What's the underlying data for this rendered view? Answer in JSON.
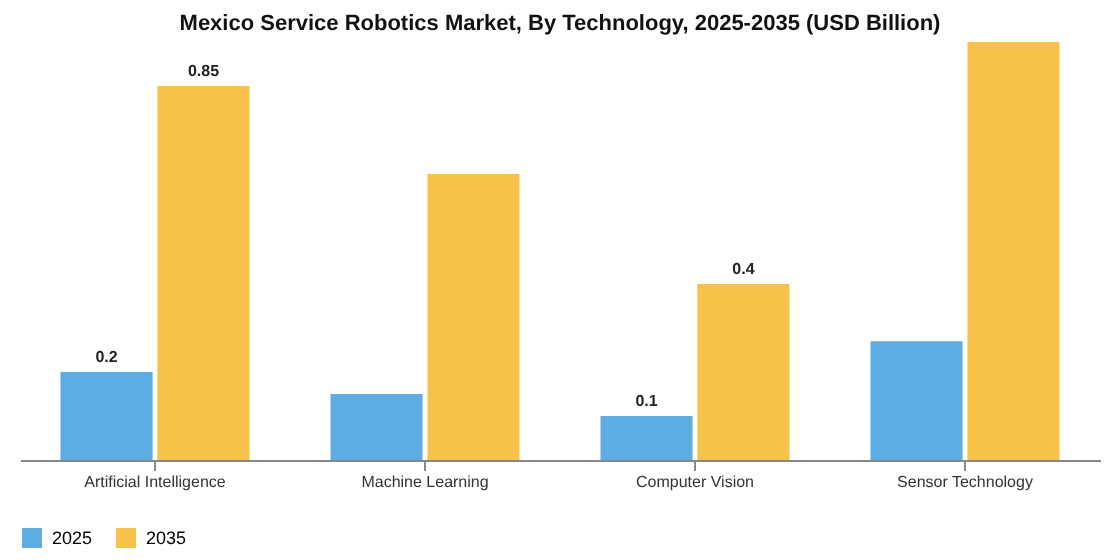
{
  "chart_data": {
    "type": "bar",
    "title": "Mexico Service Robotics Market, By Technology, 2025-2035 (USD Billion)",
    "categories": [
      "Artificial Intelligence",
      "Machine Learning",
      "Computer Vision",
      "Sensor Technology"
    ],
    "series": [
      {
        "name": "2025",
        "color": "#5dade2",
        "values": [
          0.2,
          0.15,
          0.1,
          0.27
        ],
        "value_labels": [
          "0.2",
          null,
          "0.1",
          null
        ]
      },
      {
        "name": "2035",
        "color": "#f8c24a",
        "values": [
          0.85,
          0.65,
          0.4,
          0.95
        ],
        "value_labels": [
          "0.85",
          null,
          "0.4",
          null
        ]
      }
    ],
    "legend": "bottom"
  }
}
